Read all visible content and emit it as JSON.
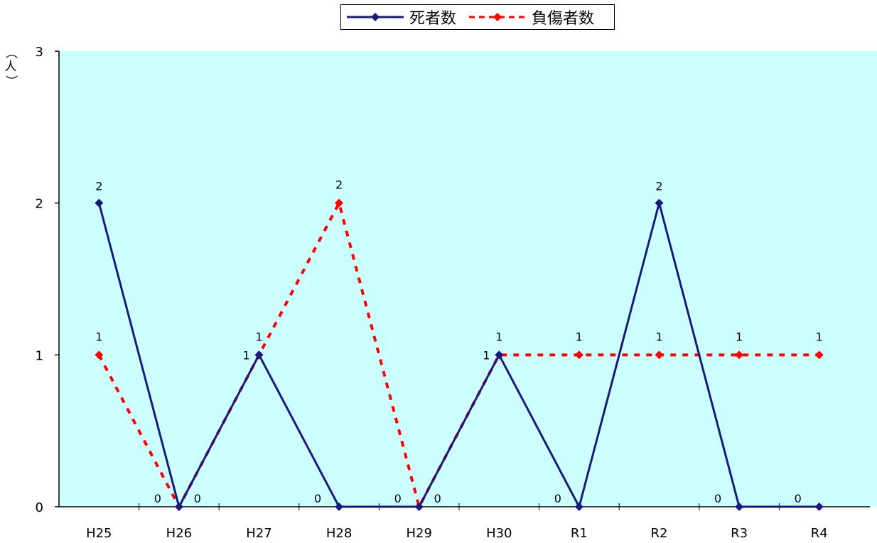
{
  "chart_data": {
    "type": "line",
    "categories": [
      "H25",
      "H26",
      "H27",
      "H28",
      "H29",
      "H30",
      "R1",
      "R2",
      "R3",
      "R4"
    ],
    "series": [
      {
        "name": "死者数",
        "values": [
          2,
          0,
          1,
          0,
          0,
          1,
          0,
          2,
          0,
          0
        ],
        "color": "#1a1a7e",
        "style": "solid",
        "marker": "diamond"
      },
      {
        "name": "負傷者数",
        "values": [
          1,
          0,
          1,
          2,
          0,
          1,
          1,
          1,
          1,
          1
        ],
        "color": "#ff0000",
        "style": "dashed",
        "marker": "diamond"
      }
    ],
    "ylabel_chars": [
      "（",
      "人",
      "）"
    ],
    "yticks": [
      "0",
      "1",
      "2",
      "3"
    ],
    "ylim": [
      0,
      3
    ],
    "plot_background": "#ccffff",
    "legend_position": "top-center",
    "grid": false
  }
}
